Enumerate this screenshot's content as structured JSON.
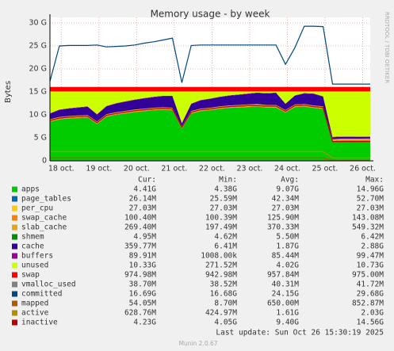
{
  "chart_data": {
    "type": "area",
    "title": "Memory usage - by week",
    "y_label": "Bytes",
    "side_label": "RRDTOOL / TOBI OETIKER",
    "x": [
      17.7,
      17.95,
      18.2,
      18.45,
      18.7,
      18.95,
      19.2,
      19.45,
      19.7,
      19.95,
      20.2,
      20.45,
      20.7,
      20.95,
      21.2,
      21.45,
      21.7,
      21.95,
      22.2,
      22.45,
      22.7,
      22.95,
      23.2,
      23.45,
      23.7,
      23.95,
      24.2,
      24.45,
      24.7,
      24.95,
      25.2,
      25.45,
      25.7,
      25.95,
      26.2
    ],
    "xlim": [
      17.7,
      26.2
    ],
    "xticks": [
      {
        "value": 18,
        "label": "18 oct."
      },
      {
        "value": 19,
        "label": "19 oct."
      },
      {
        "value": 20,
        "label": "20 oct."
      },
      {
        "value": 21,
        "label": "21 oct."
      },
      {
        "value": 22,
        "label": "22 oct."
      },
      {
        "value": 23,
        "label": "23 oct."
      },
      {
        "value": 24,
        "label": "24 oct."
      },
      {
        "value": 25,
        "label": "25 oct."
      },
      {
        "value": 26,
        "label": "26 oct."
      }
    ],
    "ylim": [
      0,
      30
    ],
    "yticks": [
      0,
      {
        "value": 5,
        "label": "5 G"
      },
      {
        "value": 10,
        "label": "10 G"
      },
      {
        "value": 15,
        "label": "15 G"
      },
      {
        "value": 20,
        "label": "20 G"
      },
      {
        "value": 25,
        "label": "25 G"
      },
      {
        "value": 30,
        "label": "30 G"
      }
    ],
    "grid": true,
    "legend_columns": [
      "Cur:",
      "Min:",
      "Avg:",
      "Max:"
    ],
    "series": [
      {
        "name": "apps",
        "color": "#00cc00",
        "kind": "area",
        "stats": [
          "4.41G",
          "4.38G",
          "9.07G",
          "14.96G"
        ],
        "values": [
          8.5,
          9.0,
          9.2,
          9.3,
          9.4,
          8.0,
          9.6,
          10.0,
          10.3,
          10.6,
          10.8,
          11.0,
          11.1,
          11.0,
          7.0,
          10.3,
          10.8,
          11.0,
          11.3,
          11.5,
          11.6,
          11.7,
          11.8,
          11.6,
          11.6,
          10.5,
          11.7,
          11.8,
          11.5,
          11.3,
          4.3,
          4.4,
          4.4,
          4.4,
          4.41
        ]
      },
      {
        "name": "page_tables",
        "color": "#0066b3",
        "kind": "area",
        "stats": [
          "26.14M",
          "25.59M",
          "42.34M",
          "52.70M"
        ],
        "values": [
          0.026,
          0.026,
          0.026,
          0.026,
          0.026,
          0.026,
          0.026,
          0.026,
          0.026,
          0.026,
          0.026,
          0.026,
          0.026,
          0.026,
          0.026,
          0.026,
          0.026,
          0.026,
          0.026,
          0.026,
          0.026,
          0.026,
          0.026,
          0.026,
          0.026,
          0.026,
          0.026,
          0.026,
          0.026,
          0.026,
          0.026,
          0.026,
          0.026,
          0.026,
          0.026
        ]
      },
      {
        "name": "per_cpu",
        "color": "#ffcc00",
        "kind": "area",
        "stats": [
          "27.03M",
          "27.03M",
          "27.03M",
          "27.03M"
        ],
        "values": [
          0.027,
          0.027,
          0.027,
          0.027,
          0.027,
          0.027,
          0.027,
          0.027,
          0.027,
          0.027,
          0.027,
          0.027,
          0.027,
          0.027,
          0.027,
          0.027,
          0.027,
          0.027,
          0.027,
          0.027,
          0.027,
          0.027,
          0.027,
          0.027,
          0.027,
          0.027,
          0.027,
          0.027,
          0.027,
          0.027,
          0.027,
          0.027,
          0.027,
          0.027,
          0.027
        ]
      },
      {
        "name": "swap_cache",
        "color": "#ff8000",
        "kind": "area",
        "stats": [
          "100.40M",
          "100.39M",
          "125.90M",
          "143.08M"
        ],
        "values": [
          0.1,
          0.1,
          0.1,
          0.1,
          0.1,
          0.1,
          0.1,
          0.1,
          0.1,
          0.1,
          0.1,
          0.1,
          0.1,
          0.1,
          0.1,
          0.1,
          0.1,
          0.1,
          0.1,
          0.1,
          0.1,
          0.1,
          0.1,
          0.1,
          0.1,
          0.1,
          0.1,
          0.1,
          0.1,
          0.1,
          0.1,
          0.1,
          0.1,
          0.1,
          0.1
        ]
      },
      {
        "name": "slab_cache",
        "color": "#e8a317",
        "kind": "area",
        "stats": [
          "269.40M",
          "197.49M",
          "370.33M",
          "549.32M"
        ],
        "values": [
          0.4,
          0.4,
          0.4,
          0.4,
          0.4,
          0.4,
          0.4,
          0.4,
          0.4,
          0.4,
          0.4,
          0.4,
          0.4,
          0.4,
          0.4,
          0.4,
          0.4,
          0.4,
          0.4,
          0.4,
          0.4,
          0.4,
          0.4,
          0.4,
          0.4,
          0.4,
          0.4,
          0.4,
          0.4,
          0.4,
          0.27,
          0.27,
          0.27,
          0.27,
          0.27
        ]
      },
      {
        "name": "shmem",
        "color": "#008f00",
        "kind": "area",
        "stats": [
          "4.95M",
          "4.62M",
          "5.50M",
          "6.42M"
        ],
        "values": [
          0.005,
          0.005,
          0.005,
          0.005,
          0.005,
          0.005,
          0.005,
          0.005,
          0.005,
          0.005,
          0.005,
          0.005,
          0.005,
          0.005,
          0.005,
          0.005,
          0.005,
          0.005,
          0.005,
          0.005,
          0.005,
          0.005,
          0.005,
          0.005,
          0.005,
          0.005,
          0.005,
          0.005,
          0.005,
          0.005,
          0.005,
          0.005,
          0.005,
          0.005,
          0.005
        ]
      },
      {
        "name": "cache",
        "color": "#330099",
        "kind": "area",
        "stats": [
          "359.77M",
          "6.41M",
          "1.87G",
          "2.88G"
        ],
        "values": [
          1.2,
          1.5,
          1.6,
          1.7,
          1.8,
          1.5,
          1.7,
          1.9,
          2.0,
          2.1,
          2.2,
          2.3,
          2.4,
          2.5,
          0.6,
          1.5,
          1.8,
          1.9,
          2.0,
          2.1,
          2.2,
          2.3,
          2.4,
          2.5,
          2.6,
          1.3,
          1.9,
          2.3,
          2.5,
          2.1,
          0.4,
          0.38,
          0.37,
          0.36,
          0.36
        ]
      },
      {
        "name": "buffers",
        "color": "#990099",
        "kind": "area",
        "stats": [
          "89.91M",
          "1008.00k",
          "85.44M",
          "99.47M"
        ],
        "values": [
          0.09,
          0.09,
          0.09,
          0.09,
          0.09,
          0.09,
          0.09,
          0.09,
          0.09,
          0.09,
          0.09,
          0.09,
          0.09,
          0.09,
          0.09,
          0.09,
          0.09,
          0.09,
          0.09,
          0.09,
          0.09,
          0.09,
          0.09,
          0.09,
          0.09,
          0.09,
          0.09,
          0.09,
          0.09,
          0.09,
          0.09,
          0.09,
          0.09,
          0.09,
          0.09
        ]
      },
      {
        "name": "unused",
        "color": "#ccff00",
        "kind": "area",
        "stats": [
          "10.33G",
          "271.52M",
          "4.02G",
          "10.73G"
        ],
        "values": [
          4.75,
          3.95,
          3.65,
          3.45,
          3.25,
          4.95,
          3.15,
          2.55,
          2.15,
          1.75,
          1.45,
          1.15,
          0.95,
          0.95,
          6.85,
          2.65,
          1.85,
          1.55,
          1.15,
          0.85,
          0.65,
          0.45,
          0.25,
          0.35,
          0.25,
          2.65,
          0.85,
          0.35,
          0.45,
          1.05,
          9.88,
          9.8,
          9.81,
          9.82,
          9.81
        ]
      },
      {
        "name": "swap",
        "color": "#ff0000",
        "kind": "area",
        "stats": [
          "974.98M",
          "942.98M",
          "957.84M",
          "975.00M"
        ],
        "values": [
          0.975,
          0.975,
          0.975,
          0.975,
          0.975,
          0.975,
          0.975,
          0.975,
          0.975,
          0.975,
          0.975,
          0.975,
          0.975,
          0.975,
          0.975,
          0.975,
          0.975,
          0.975,
          0.975,
          0.975,
          0.975,
          0.975,
          0.975,
          0.975,
          0.975,
          0.975,
          0.975,
          0.975,
          0.975,
          0.975,
          0.975,
          0.975,
          0.975,
          0.975,
          0.975
        ]
      },
      {
        "name": "vmalloc_used",
        "color": "#808080",
        "kind": "line",
        "stats": [
          "38.70M",
          "38.52M",
          "40.31M",
          "41.72M"
        ],
        "values": [
          0.04,
          0.04,
          0.04,
          0.04,
          0.04,
          0.04,
          0.04,
          0.04,
          0.04,
          0.04,
          0.04,
          0.04,
          0.04,
          0.04,
          0.04,
          0.04,
          0.04,
          0.04,
          0.04,
          0.04,
          0.04,
          0.04,
          0.04,
          0.04,
          0.04,
          0.04,
          0.04,
          0.04,
          0.04,
          0.04,
          0.04,
          0.04,
          0.04,
          0.04,
          0.04
        ]
      },
      {
        "name": "committed",
        "color": "#00487d",
        "kind": "line",
        "stats": [
          "16.69G",
          "16.68G",
          "24.15G",
          "29.68G"
        ],
        "values": [
          17.3,
          25.0,
          25.1,
          25.1,
          25.1,
          25.2,
          24.8,
          24.9,
          25.0,
          25.2,
          25.6,
          25.9,
          26.3,
          26.7,
          17.0,
          25.1,
          25.2,
          25.2,
          25.2,
          25.2,
          25.2,
          25.2,
          25.2,
          25.2,
          25.2,
          21.0,
          24.6,
          29.3,
          29.3,
          29.2,
          16.7,
          16.7,
          16.7,
          16.7,
          16.7
        ]
      },
      {
        "name": "mapped",
        "color": "#b35a00",
        "kind": "line",
        "stats": [
          "54.05M",
          "8.70M",
          "650.00M",
          "852.87M"
        ],
        "values": [
          0.65,
          0.65,
          0.65,
          0.65,
          0.65,
          0.65,
          0.65,
          0.65,
          0.65,
          0.65,
          0.65,
          0.65,
          0.65,
          0.65,
          0.65,
          0.65,
          0.65,
          0.65,
          0.65,
          0.65,
          0.65,
          0.65,
          0.65,
          0.65,
          0.65,
          0.65,
          0.65,
          0.65,
          0.65,
          0.65,
          0.054,
          0.054,
          0.054,
          0.054,
          0.054
        ]
      },
      {
        "name": "active",
        "color": "#b38f00",
        "kind": "line",
        "stats": [
          "628.76M",
          "424.97M",
          "1.61G",
          "2.03G"
        ],
        "values": [
          2.0,
          2.0,
          2.0,
          2.0,
          2.0,
          2.0,
          2.0,
          2.0,
          2.0,
          2.0,
          2.0,
          2.0,
          2.0,
          2.0,
          2.0,
          2.0,
          2.0,
          2.0,
          2.0,
          2.0,
          2.0,
          2.0,
          2.0,
          2.0,
          2.0,
          2.0,
          2.0,
          2.0,
          2.0,
          2.0,
          0.63,
          0.63,
          0.63,
          0.63,
          0.63
        ]
      },
      {
        "name": "inactive",
        "color": "#bd0000",
        "kind": "line",
        "stats": [
          "4.23G",
          "4.05G",
          "9.40G",
          "14.56G"
        ],
        "values": [
          8.8,
          9.3,
          9.5,
          9.6,
          9.7,
          8.3,
          9.9,
          10.3,
          10.6,
          10.9,
          11.1,
          11.3,
          11.4,
          11.3,
          7.3,
          10.6,
          11.1,
          11.3,
          11.6,
          11.8,
          11.9,
          12.0,
          12.0,
          11.9,
          11.9,
          10.8,
          12.0,
          12.1,
          11.8,
          11.6,
          4.2,
          4.2,
          4.2,
          4.2,
          4.23
        ]
      }
    ]
  },
  "footer": {
    "last_update": "Last update: Sun Oct 26 15:30:19 2025",
    "version": "Munin 2.0.67"
  }
}
